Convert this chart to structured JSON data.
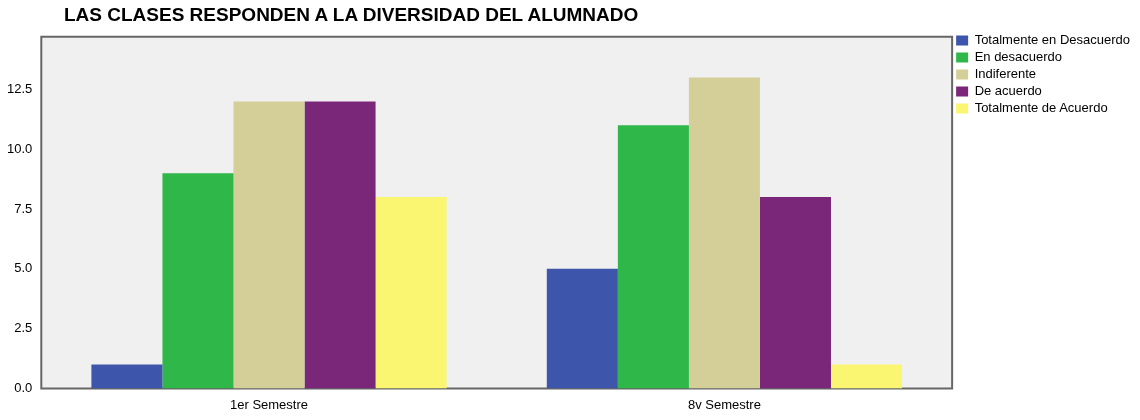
{
  "chart_data": {
    "type": "bar",
    "title": "LAS CLASES RESPONDEN A LA DIVERSIDAD DEL ALUMNADO",
    "categories": [
      "1er Semestre",
      "8v Semestre"
    ],
    "series": [
      {
        "name": "Totalmente en Desacuerdo",
        "color": "#3d56ab",
        "values": [
          1,
          5
        ]
      },
      {
        "name": "En desacuerdo",
        "color": "#2fb749",
        "values": [
          9,
          11
        ]
      },
      {
        "name": "Indiferente",
        "color": "#d4cf98",
        "values": [
          12,
          13
        ]
      },
      {
        "name": "De acuerdo",
        "color": "#7b2779",
        "values": [
          12,
          8
        ]
      },
      {
        "name": "Totalmente de Acuerdo",
        "color": "#faf672",
        "values": [
          8,
          1
        ]
      }
    ],
    "ylim": [
      0,
      14.7
    ],
    "yticks": [
      {
        "value": 0,
        "label": "0.0"
      },
      {
        "value": 2.5,
        "label": "2.5"
      },
      {
        "value": 5,
        "label": "5.0"
      },
      {
        "value": 7.5,
        "label": "7.5"
      },
      {
        "value": 10,
        "label": "10.0"
      },
      {
        "value": 12.5,
        "label": "12.5"
      }
    ],
    "grid": false,
    "legend": "top right"
  }
}
